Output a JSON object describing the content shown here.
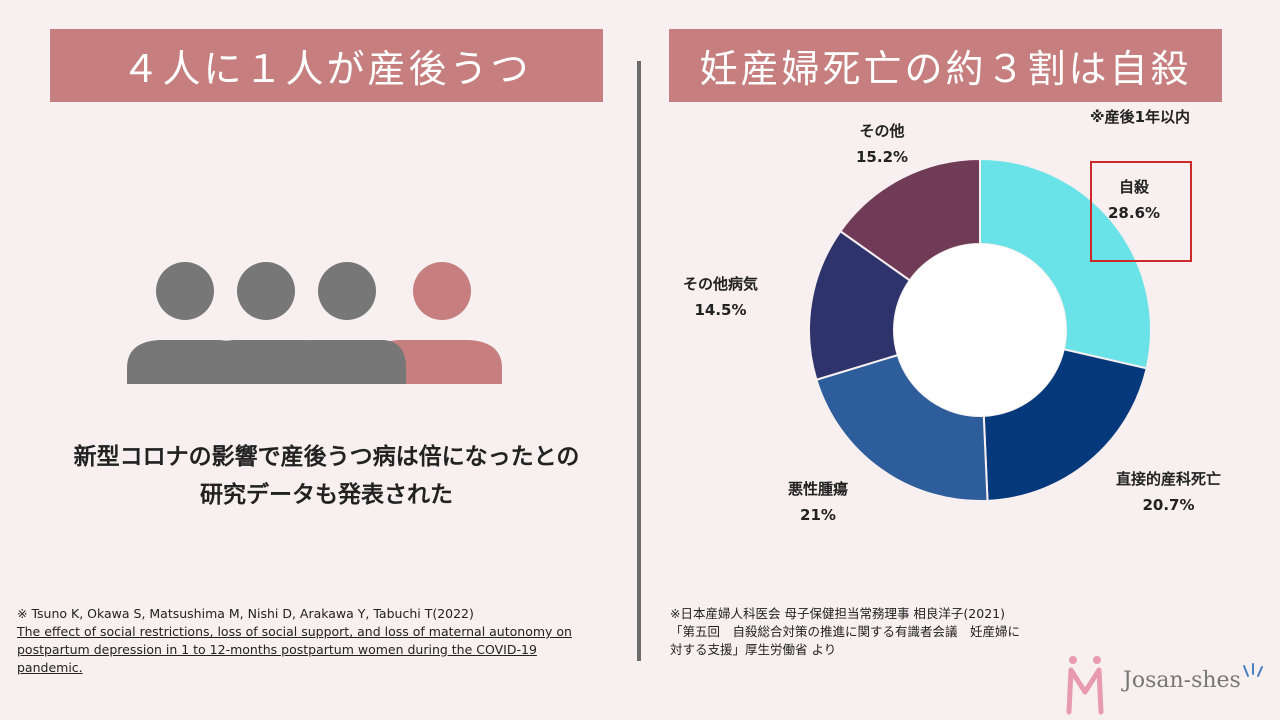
{
  "left": {
    "title": "４人に１人が産後うつ",
    "statement_line1": "新型コロナの影響で産後うつ病は倍になったとの",
    "statement_line2": "研究データも発表された",
    "citation_authors": "※ Tsuno K, Okawa S, Matsushima M, Nishi D, Arakawa Y, Tabuchi T(2022)",
    "citation_link_line1": "The effect of social restrictions, loss of social support, and loss of maternal autonomy on",
    "citation_link_line2": "postpartum depression in 1 to 12-months postpartum women during the COVID-19",
    "citation_link_line3": "pandemic.",
    "people_icons": [
      "person-gray",
      "person-gray",
      "person-gray",
      "person-pink"
    ]
  },
  "right": {
    "title": "妊産婦死亡の約３割は自殺",
    "note": "※産後1年以内",
    "citation_line1": "※日本産婦人科医会 母子保健担当常務理事 相良洋子(2021)",
    "citation_line2": "「第五回　自殺総合対策の推進に関する有識者会議　妊産婦に",
    "citation_line3": "対する支援」厚生労働省 より"
  },
  "chart_data": {
    "type": "pie",
    "donut": true,
    "categories": [
      "自殺",
      "直接的産科死亡",
      "悪性腫瘍",
      "その他病気",
      "その他"
    ],
    "values": [
      28.6,
      20.7,
      21,
      14.5,
      15.2
    ],
    "value_labels": [
      "28.6%",
      "20.7%",
      "21%",
      "14.5%",
      "15.2%"
    ],
    "colors": [
      "#6ae3e8",
      "#06397b",
      "#2d5e9b",
      "#2f336b",
      "#703b57"
    ],
    "highlight": "自殺"
  },
  "colors": {
    "background": "#f7eff0",
    "banner": "#c67f7e",
    "person_gray": "#777777",
    "person_pink": "#c67f7e",
    "highlight_box": "#cc2a2a"
  },
  "logo": {
    "text": "Josan-shes"
  }
}
